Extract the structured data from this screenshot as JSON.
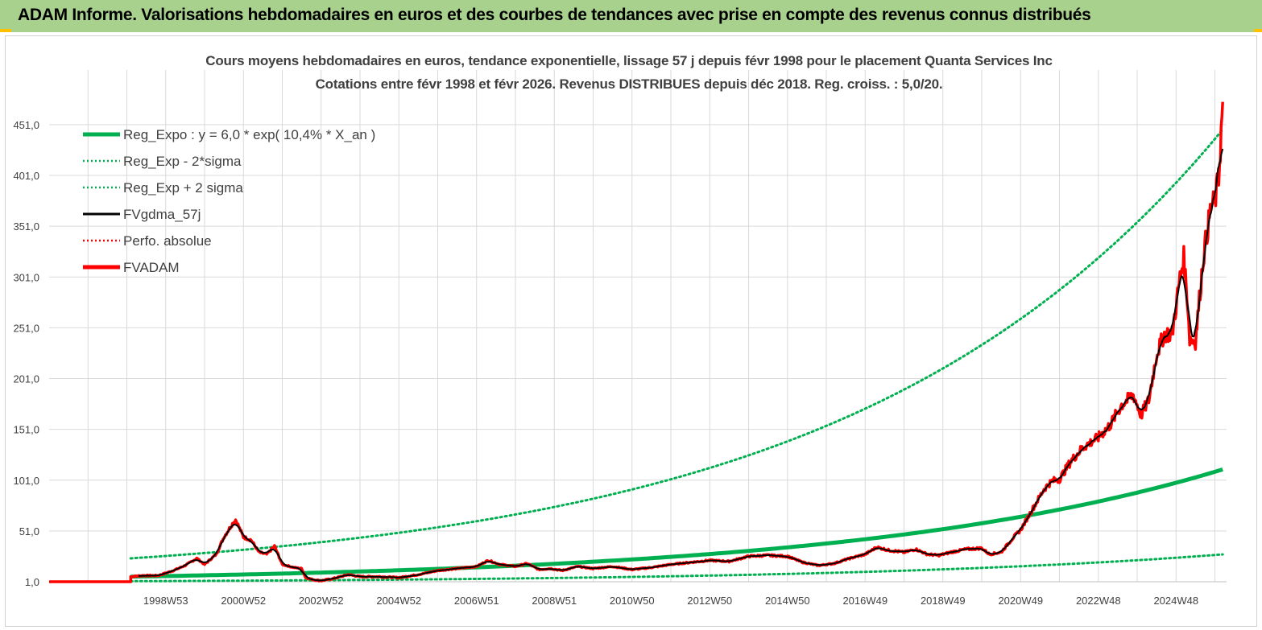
{
  "header": {
    "banner_text": "ADAM Informe. Valorisations hebdomadaires en euros et des courbes de tendances avec prise en compte des revenus connus distribués"
  },
  "colors": {
    "banner_bg": "#a9d18e",
    "banner_accent": "#ffc000",
    "reg_expo": "#00b050",
    "fvgdma": "#000000",
    "fvadam": "#ff0000",
    "grid": "#d9d9d9"
  },
  "chart_data": {
    "type": "line",
    "title_line1": "Cours moyens hebdomadaires en euros, tendance exponentielle, lissage 57 j depuis févr 1998 pour le placement Quanta Services Inc",
    "title_line2": "Cotations entre févr 1998 et févr 2026. Revenus DISTRIBUES depuis déc 2018. Reg. croiss. : 5,0/20.",
    "x_tick_labels": [
      "1998W53",
      "2000W52",
      "2002W52",
      "2004W52",
      "2006W51",
      "2008W51",
      "2010W50",
      "2012W50",
      "2014W50",
      "2016W49",
      "2018W49",
      "2020W49",
      "2022W48",
      "2024W48"
    ],
    "x_range_years": [
      1996.0,
      2026.3
    ],
    "y_tick_labels": [
      "1,0",
      "51,0",
      "101,0",
      "151,0",
      "201,0",
      "251,0",
      "301,0",
      "351,0",
      "401,0",
      "451,0"
    ],
    "y_ticks": [
      1,
      51,
      101,
      151,
      201,
      251,
      301,
      351,
      401,
      451
    ],
    "ylim": [
      1,
      481
    ],
    "grid": true,
    "legend_position": "top-left",
    "regression": {
      "a": 6.0,
      "rate": 0.104,
      "start_year": 1998.1,
      "end_year": 2026.2,
      "sigma_factor_high": 4.0,
      "sigma_factor_low": 0.25
    },
    "series": [
      {
        "name": "Reg_Expo : y = 6,0 * exp( 10,4% *  X_an )",
        "style": "thick-solid",
        "color": "#00b050"
      },
      {
        "name": "Reg_Exp - 2*sigma",
        "style": "dotted",
        "color": "#00b050"
      },
      {
        "name": "Reg_Exp + 2 sigma",
        "style": "dotted",
        "color": "#00b050"
      },
      {
        "name": "FVgdma_57j",
        "style": "solid",
        "color": "#000000"
      },
      {
        "name": "Perfo. absolue",
        "style": "dotted",
        "color": "#ff0000"
      },
      {
        "name": "FVADAM",
        "style": "thick-solid",
        "color": "#ff0000",
        "points": [
          [
            1996.0,
            1
          ],
          [
            1998.1,
            1
          ],
          [
            1998.1,
            6
          ],
          [
            1998.4,
            7
          ],
          [
            1998.8,
            7
          ],
          [
            1999.2,
            12
          ],
          [
            1999.5,
            17
          ],
          [
            1999.8,
            24
          ],
          [
            2000.0,
            18
          ],
          [
            2000.3,
            28
          ],
          [
            2000.5,
            45
          ],
          [
            2000.7,
            57
          ],
          [
            2000.8,
            62
          ],
          [
            2001.0,
            45
          ],
          [
            2001.2,
            42
          ],
          [
            2001.4,
            30
          ],
          [
            2001.6,
            28
          ],
          [
            2001.8,
            36
          ],
          [
            2002.0,
            18
          ],
          [
            2002.3,
            15
          ],
          [
            2002.5,
            14
          ],
          [
            2002.6,
            5
          ],
          [
            2002.8,
            3
          ],
          [
            2003.0,
            2
          ],
          [
            2003.3,
            4
          ],
          [
            2003.7,
            8
          ],
          [
            2004.0,
            6
          ],
          [
            2004.5,
            6
          ],
          [
            2005.0,
            5
          ],
          [
            2005.5,
            8
          ],
          [
            2006.0,
            12
          ],
          [
            2006.5,
            14
          ],
          [
            2007.0,
            16
          ],
          [
            2007.3,
            22
          ],
          [
            2007.6,
            18
          ],
          [
            2008.0,
            16
          ],
          [
            2008.3,
            19
          ],
          [
            2008.6,
            13
          ],
          [
            2008.9,
            14
          ],
          [
            2009.2,
            12
          ],
          [
            2009.6,
            16
          ],
          [
            2010.0,
            14
          ],
          [
            2010.5,
            16
          ],
          [
            2011.0,
            13
          ],
          [
            2011.5,
            15
          ],
          [
            2012.0,
            18
          ],
          [
            2012.5,
            20
          ],
          [
            2013.0,
            22
          ],
          [
            2013.5,
            21
          ],
          [
            2014.0,
            26
          ],
          [
            2014.5,
            27
          ],
          [
            2015.0,
            26
          ],
          [
            2015.4,
            20
          ],
          [
            2015.8,
            17
          ],
          [
            2016.2,
            19
          ],
          [
            2016.6,
            24
          ],
          [
            2017.0,
            28
          ],
          [
            2017.3,
            35
          ],
          [
            2017.6,
            32
          ],
          [
            2018.0,
            30
          ],
          [
            2018.3,
            33
          ],
          [
            2018.6,
            28
          ],
          [
            2018.9,
            27
          ],
          [
            2019.2,
            30
          ],
          [
            2019.6,
            33
          ],
          [
            2020.0,
            34
          ],
          [
            2020.2,
            28
          ],
          [
            2020.5,
            30
          ],
          [
            2020.8,
            44
          ],
          [
            2021.0,
            52
          ],
          [
            2021.3,
            72
          ],
          [
            2021.6,
            92
          ],
          [
            2021.8,
            100
          ],
          [
            2022.0,
            102
          ],
          [
            2022.3,
            120
          ],
          [
            2022.6,
            133
          ],
          [
            2022.8,
            138
          ],
          [
            2023.0,
            143
          ],
          [
            2023.3,
            155
          ],
          [
            2023.6,
            175
          ],
          [
            2023.9,
            185
          ],
          [
            2024.1,
            165
          ],
          [
            2024.3,
            180
          ],
          [
            2024.5,
            225
          ],
          [
            2024.7,
            245
          ],
          [
            2024.9,
            245
          ],
          [
            2025.1,
            300
          ],
          [
            2025.2,
            320
          ],
          [
            2025.3,
            275
          ],
          [
            2025.35,
            240
          ],
          [
            2025.5,
            238
          ],
          [
            2025.7,
            320
          ],
          [
            2025.9,
            370
          ],
          [
            2026.0,
            375
          ],
          [
            2026.1,
            400
          ],
          [
            2026.2,
            470
          ]
        ]
      }
    ]
  }
}
